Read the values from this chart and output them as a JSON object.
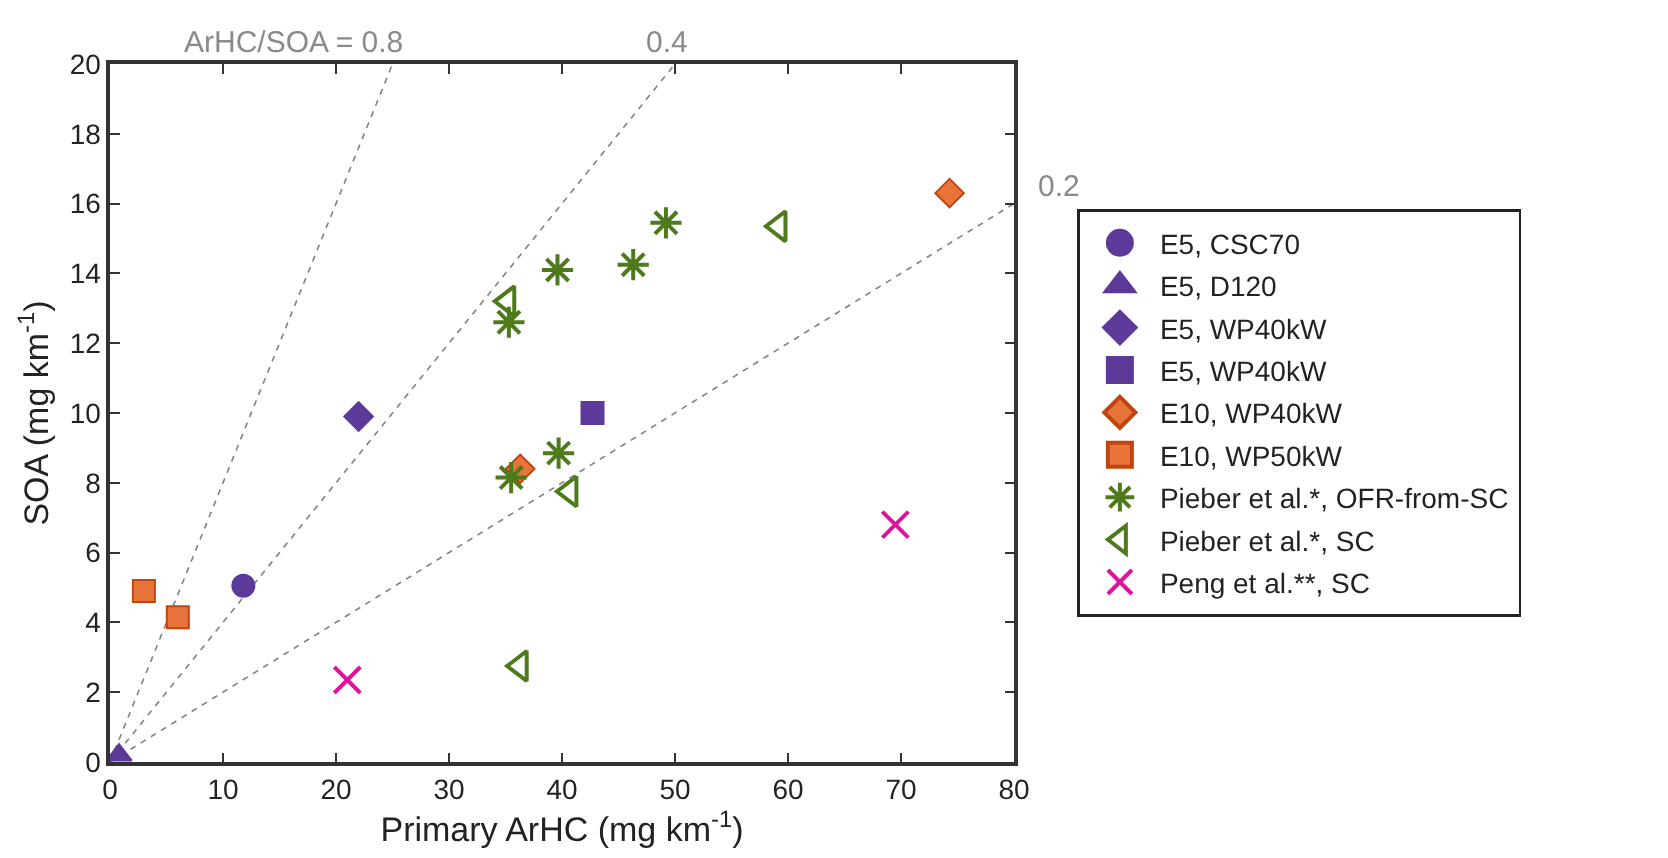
{
  "chart_data": {
    "type": "scatter",
    "xlabel": "Primary ArHC (mg km$^{-1}$)",
    "ylabel": "SOA (mg km$^{-1}$)",
    "xlim": [
      0,
      80
    ],
    "xticks": [
      0,
      10,
      20,
      30,
      40,
      50,
      60,
      70,
      80
    ],
    "ylim": [
      0,
      20
    ],
    "yticks": [
      0,
      2,
      4,
      6,
      8,
      10,
      12,
      14,
      16,
      18,
      20
    ],
    "grid": false,
    "legend": "right",
    "annotations": [
      {
        "text": "ArHC/SOA = 0.8",
        "x": 25,
        "y": 20
      },
      {
        "text": "0.4",
        "x": 50,
        "y": 20
      },
      {
        "text": "0.2",
        "x": 80,
        "y": 16
      }
    ],
    "series": [
      {
        "type": "line",
        "color": "#808080",
        "line_style": "dotted",
        "marker": "none",
        "x": [
          0,
          25
        ],
        "values": [
          0,
          20
        ]
      },
      {
        "type": "line",
        "color": "#808080",
        "line_style": "dotted",
        "marker": "none",
        "x": [
          0,
          50
        ],
        "values": [
          0,
          20
        ]
      },
      {
        "type": "line",
        "color": "#808080",
        "line_style": "dotted",
        "marker": "none",
        "x": [
          0,
          80
        ],
        "values": [
          0,
          16
        ]
      },
      {
        "name": "E5, CSC70",
        "color": "#5b3a9a",
        "marker": "circle",
        "x": [
          11.8
        ],
        "values": [
          5.05
        ]
      },
      {
        "name": "E5, D120",
        "color": "#5b3a9a",
        "marker": "triangle",
        "x": [
          0.8
        ],
        "values": [
          0.2
        ]
      },
      {
        "name": "E5, WP40kW",
        "color": "#5b3a9a",
        "marker": "diamond",
        "x": [
          22.0
        ],
        "values": [
          9.9
        ]
      },
      {
        "name": "E5, WP40kW",
        "color": "#5b3a9a",
        "marker": "square",
        "x": [
          42.7
        ],
        "values": [
          10.0
        ]
      },
      {
        "name": "E10, WP40kW",
        "color": "#e8743b",
        "marker": "diamond",
        "x": [
          36.3,
          74.3
        ],
        "values": [
          8.4,
          16.3
        ]
      },
      {
        "name": "E10, WP50kW",
        "color": "#e8743b",
        "marker": "square",
        "x": [
          3.0,
          6.0
        ],
        "values": [
          4.9,
          4.15
        ]
      },
      {
        "name": "Pieber et al.*, OFR-from-SC",
        "color": "#4f7a1c",
        "marker": "cross",
        "x": [
          35.3,
          35.5,
          39.6,
          39.7,
          46.3,
          49.2
        ],
        "values": [
          12.6,
          8.15,
          14.1,
          8.85,
          14.25,
          15.45
        ]
      },
      {
        "name": "Pieber et al.*, SC",
        "color": "#4f7a1c",
        "marker": "triangle-left",
        "x": [
          35.2,
          36.3,
          40.7,
          59.2
        ],
        "values": [
          13.2,
          2.75,
          7.75,
          15.35
        ]
      },
      {
        "name": "Peng et al.**, SC",
        "color": "#e0139c",
        "marker": "x",
        "x": [
          21.0,
          69.5
        ],
        "values": [
          2.35,
          6.8
        ]
      }
    ]
  }
}
